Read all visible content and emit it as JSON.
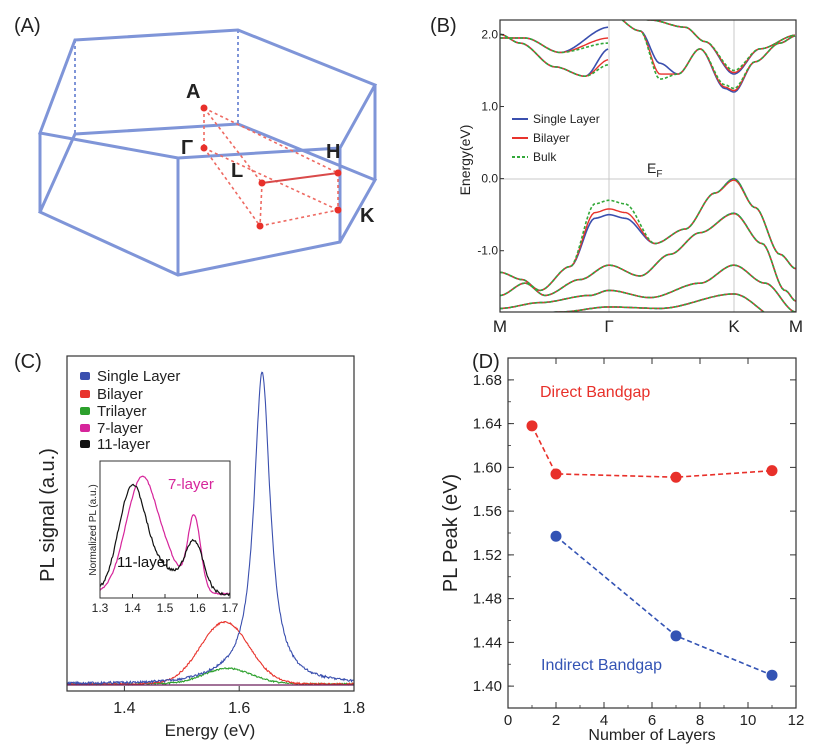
{
  "panels": {
    "a": {
      "label": "(A)",
      "points": [
        {
          "name": "A",
          "display": "A"
        },
        {
          "name": "Gamma",
          "display": "Γ"
        },
        {
          "name": "L",
          "display": "L"
        },
        {
          "name": "H",
          "display": "H"
        },
        {
          "name": "K",
          "display": "K"
        }
      ]
    },
    "b": {
      "label": "(B)",
      "ef_label": "E",
      "ef_sub": "F"
    },
    "c": {
      "label": "(C)",
      "inset": {
        "ylabel": "Normalized PL (a.u.)",
        "ann_7": "7-layer",
        "ann_11": "11-layer"
      }
    },
    "d": {
      "label": "(D)",
      "ann_direct": "Direct Bandgap",
      "ann_indirect": "Indirect Bandgap"
    }
  },
  "colors": {
    "single": "#3a4fae",
    "bilayer": "#e8332c",
    "bulk": "#33a83a",
    "trilayer": "#2ca02c",
    "seven": "#d6259b",
    "eleven": "#111111",
    "direct": "#e8302a",
    "indirect": "#3353b4",
    "bz": "#7f95d8",
    "bzpath": "#ee6a62"
  },
  "chart_data": [
    {
      "id": "b",
      "type": "line",
      "title": "",
      "xlabel": "",
      "ylabel": "Energy(eV)",
      "ylim": [
        -1.85,
        2.2
      ],
      "x_ticks": [
        "M",
        "Γ",
        "K",
        "M"
      ],
      "y_ticks": [
        {
          "v": 2.0,
          "t": "2.0"
        },
        {
          "v": 1.0,
          "t": "1.0"
        },
        {
          "v": 0.0,
          "t": "0.0"
        },
        {
          "v": -1.0,
          "t": "-1.0"
        }
      ],
      "legend": [
        "Single Layer",
        "Bilayer",
        "Bulk"
      ],
      "series": [
        {
          "name": "Single Layer",
          "cb_gamma": 1.6,
          "cb_k": 1.2,
          "vb_gamma": -0.5,
          "vb_k": 0.0
        },
        {
          "name": "Bilayer",
          "cb_gamma": 1.45,
          "cb_k": 1.22,
          "vb_gamma": -0.42,
          "vb_k": -0.02
        },
        {
          "name": "Bulk",
          "cb_gamma": 1.38,
          "cb_k": 1.25,
          "vb_gamma": -0.3,
          "vb_k": 0.0
        }
      ]
    },
    {
      "id": "c",
      "type": "line",
      "title": "",
      "xlabel": "Energy (eV)",
      "ylabel": "PL signal (a.u.)",
      "xlim": [
        1.3,
        1.8
      ],
      "x_ticks": [
        {
          "v": 1.4,
          "t": "1.4"
        },
        {
          "v": 1.6,
          "t": "1.6"
        },
        {
          "v": 1.8,
          "t": "1.8"
        }
      ],
      "legend": [
        "Single Layer",
        "Bilayer",
        "Trilayer",
        "7-layer",
        "11-layer"
      ],
      "series": [
        {
          "name": "Single Layer",
          "peak_eV": 1.64,
          "amplitude": 1.0
        },
        {
          "name": "Bilayer",
          "peak_eV": 1.575,
          "amplitude": 0.2
        },
        {
          "name": "Trilayer",
          "peak_eV": 1.58,
          "amplitude": 0.05
        }
      ],
      "inset": {
        "xlim": [
          1.3,
          1.7
        ],
        "x_ticks": [
          "1.3",
          "1.4",
          "1.5",
          "1.6",
          "1.7"
        ],
        "series": [
          {
            "name": "7-layer",
            "peaks_eV": [
              1.43,
              1.59
            ]
          },
          {
            "name": "11-layer",
            "peaks_eV": [
              1.4,
              1.59
            ]
          }
        ]
      }
    },
    {
      "id": "d",
      "type": "scatter",
      "title": "",
      "xlabel": "Number of Layers",
      "ylabel": "PL Peak (eV)",
      "xlim": [
        0,
        12
      ],
      "ylim": [
        1.38,
        1.7
      ],
      "x_ticks": [
        {
          "v": 0,
          "t": "0"
        },
        {
          "v": 2,
          "t": "2"
        },
        {
          "v": 4,
          "t": "4"
        },
        {
          "v": 6,
          "t": "6"
        },
        {
          "v": 8,
          "t": "8"
        },
        {
          "v": 10,
          "t": "10"
        },
        {
          "v": 12,
          "t": "12"
        }
      ],
      "y_ticks": [
        {
          "v": 1.4,
          "t": "1.40"
        },
        {
          "v": 1.44,
          "t": "1.44"
        },
        {
          "v": 1.48,
          "t": "1.48"
        },
        {
          "v": 1.52,
          "t": "1.52"
        },
        {
          "v": 1.56,
          "t": "1.56"
        },
        {
          "v": 1.6,
          "t": "1.60"
        },
        {
          "v": 1.64,
          "t": "1.64"
        },
        {
          "v": 1.68,
          "t": "1.68"
        }
      ],
      "series": [
        {
          "name": "Direct Bandgap",
          "x": [
            1,
            2,
            7,
            11
          ],
          "y": [
            1.638,
            1.594,
            1.591,
            1.597
          ]
        },
        {
          "name": "Indirect Bandgap",
          "x": [
            2,
            7,
            11
          ],
          "y": [
            1.537,
            1.446,
            1.41
          ]
        }
      ]
    }
  ]
}
